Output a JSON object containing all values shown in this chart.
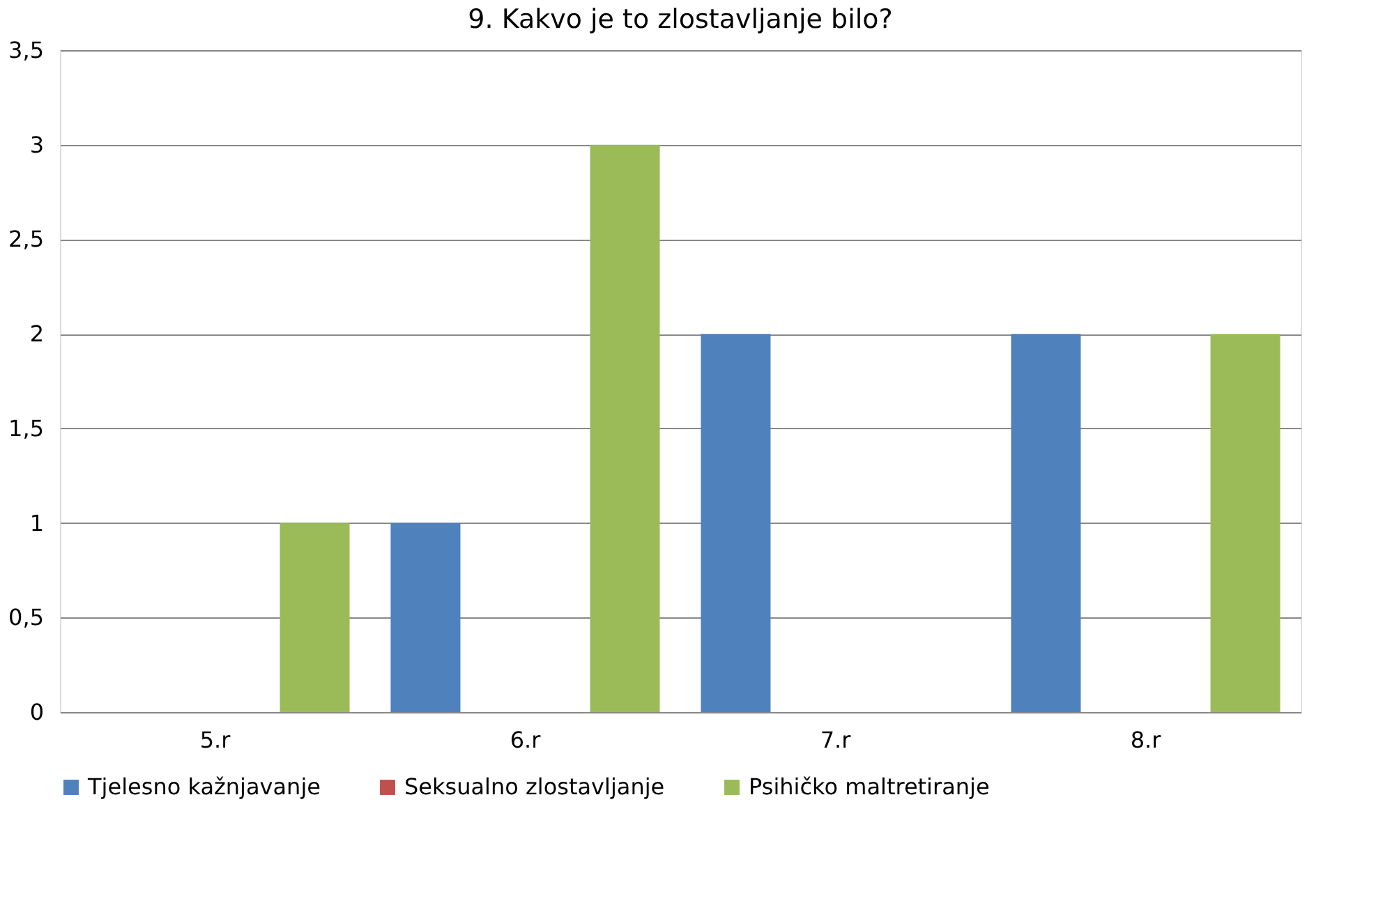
{
  "chart_data": {
    "type": "bar",
    "title": "9. Kakvo je to zlostavljanje bilo?",
    "categories": [
      "5.r",
      "6.r",
      "7.r",
      "8.r"
    ],
    "series": [
      {
        "name": "Tjelesno kažnjavanje",
        "color": "#4f81bd",
        "values": [
          0,
          1,
          2,
          2
        ]
      },
      {
        "name": "Seksualno zlostavljanje",
        "color": "#c0504d",
        "values": [
          0,
          0,
          0,
          0
        ]
      },
      {
        "name": "Psihičko maltretiranje",
        "color": "#9bbb59",
        "values": [
          1,
          3,
          0,
          2
        ]
      }
    ],
    "ylim": [
      0,
      3.5
    ],
    "yticks": [
      0,
      {
        "value": 0.5,
        "label": "0,5"
      },
      1,
      {
        "value": 1.5,
        "label": "1,5"
      },
      2,
      {
        "value": 2.5,
        "label": "2,5"
      },
      3,
      {
        "value": 3.5,
        "label": "3,5"
      }
    ],
    "grid": "y",
    "legend": "bottom"
  }
}
